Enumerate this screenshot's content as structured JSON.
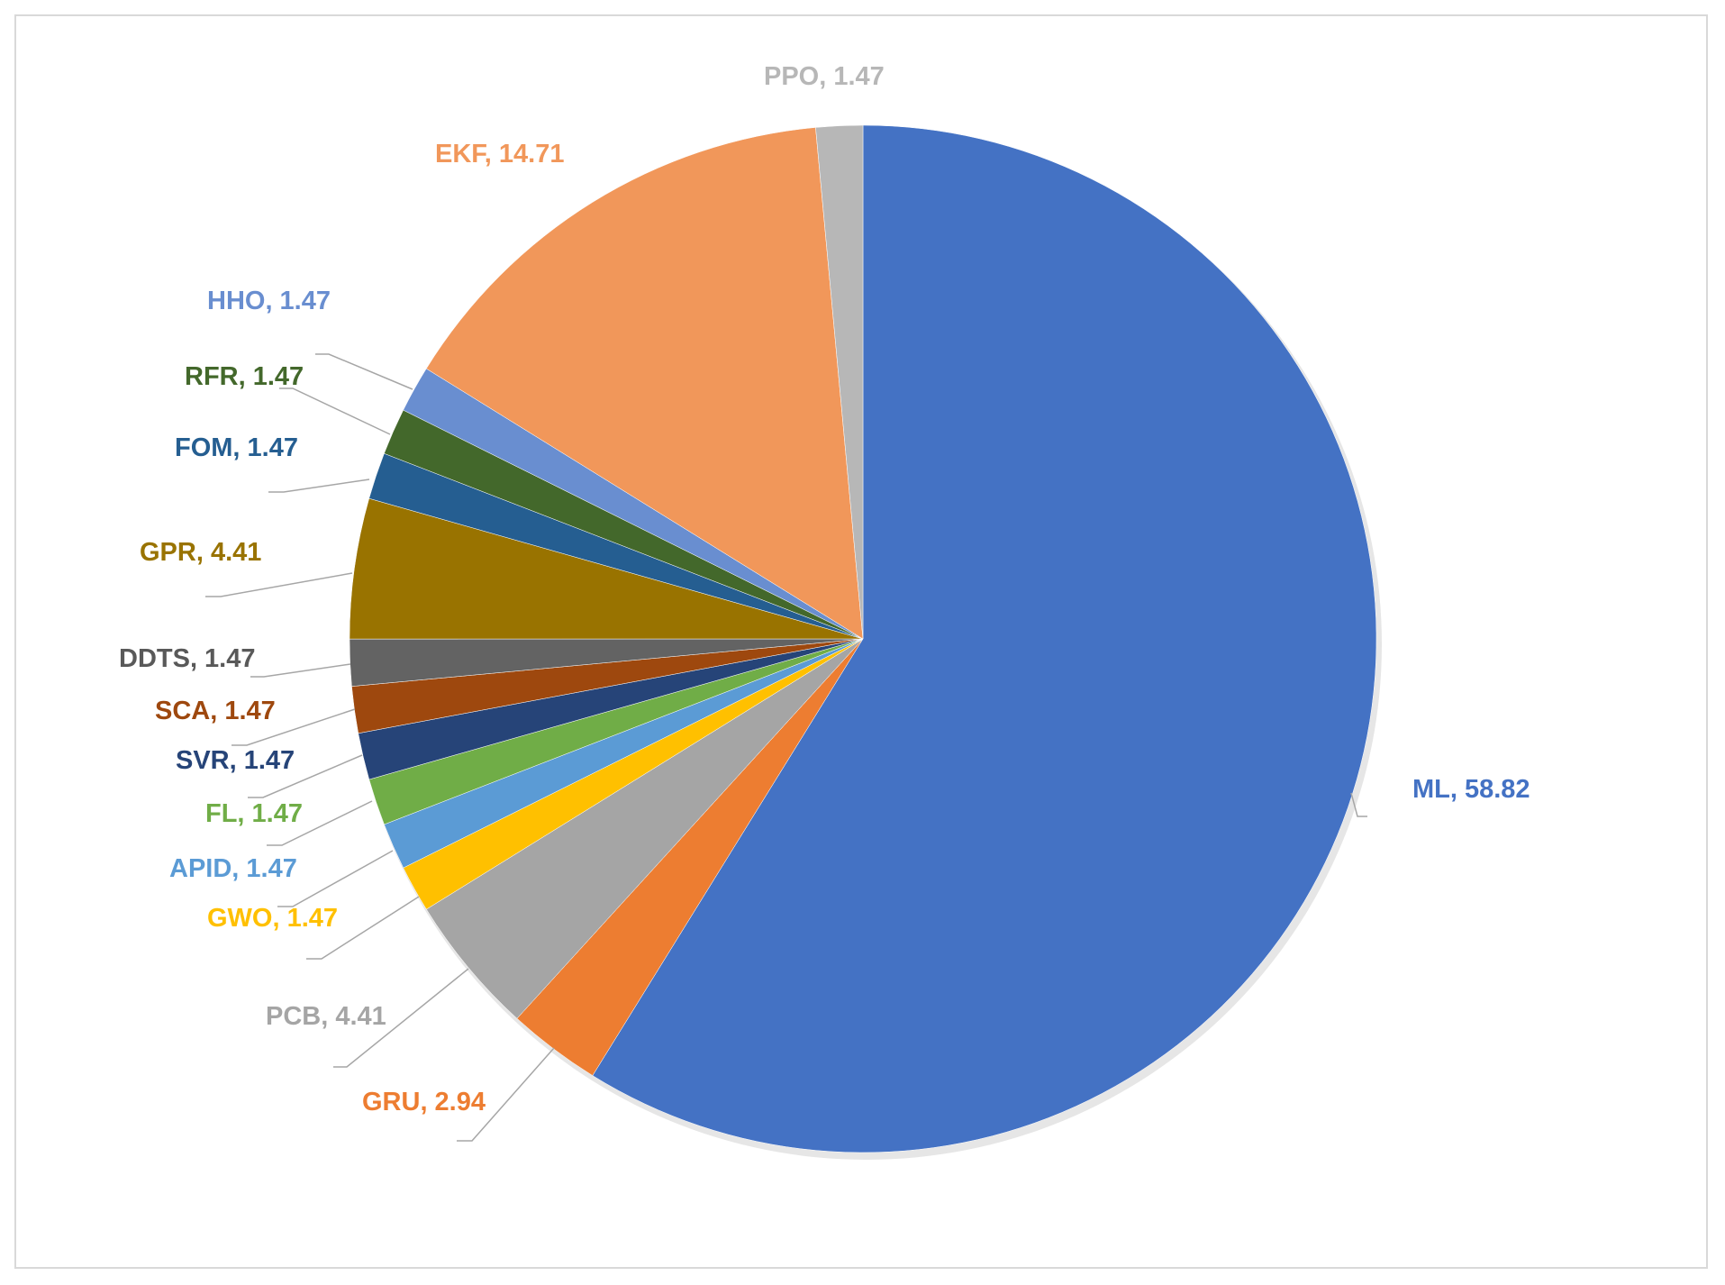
{
  "chart_data": {
    "type": "pie",
    "title": "",
    "series": [
      {
        "values": [
          {
            "label": "ML",
            "value": 58.82,
            "color": "#4472C4",
            "text": "ML, 58.82"
          },
          {
            "label": "GRU",
            "value": 2.94,
            "color": "#ED7D31",
            "text": "GRU, 2.94"
          },
          {
            "label": "PCB",
            "value": 4.41,
            "color": "#A5A5A5",
            "text": "PCB, 4.41"
          },
          {
            "label": "GWO",
            "value": 1.47,
            "color": "#FFC000",
            "text": "GWO, 1.47"
          },
          {
            "label": "APID",
            "value": 1.47,
            "color": "#5B9BD5",
            "text": "APID, 1.47"
          },
          {
            "label": "FL",
            "value": 1.47,
            "color": "#70AD47",
            "text": "FL, 1.47"
          },
          {
            "label": "SVR",
            "value": 1.47,
            "color": "#264478",
            "text": "SVR, 1.47"
          },
          {
            "label": "SCA",
            "value": 1.47,
            "color": "#9E480E",
            "text": "SCA, 1.47"
          },
          {
            "label": "DDTS",
            "value": 1.47,
            "color": "#636363",
            "text": "DDTS, 1.47"
          },
          {
            "label": "GPR",
            "value": 4.41,
            "color": "#997300",
            "text": "GPR, 4.41"
          },
          {
            "label": "FOM",
            "value": 1.47,
            "color": "#255E91",
            "text": "FOM, 1.47"
          },
          {
            "label": "RFR",
            "value": 1.47,
            "color": "#43682B",
            "text": "RFR, 1.47"
          },
          {
            "label": "HHO",
            "value": 1.47,
            "color": "#698ED0",
            "text": "HHO, 1.47"
          },
          {
            "label": "EKF",
            "value": 14.71,
            "color": "#F1975A",
            "text": "EKF, 14.71"
          },
          {
            "label": "PPO",
            "value": 1.47,
            "color": "#B7B7B7",
            "text": "PPO, 1.47"
          }
        ]
      }
    ],
    "data_labels": "outside-with-leader-lines",
    "legend": "none",
    "label_colors": {
      "PCB": "#A5A5A5",
      "DDTS": "#595959",
      "PPO": "#B7B7B7"
    }
  }
}
